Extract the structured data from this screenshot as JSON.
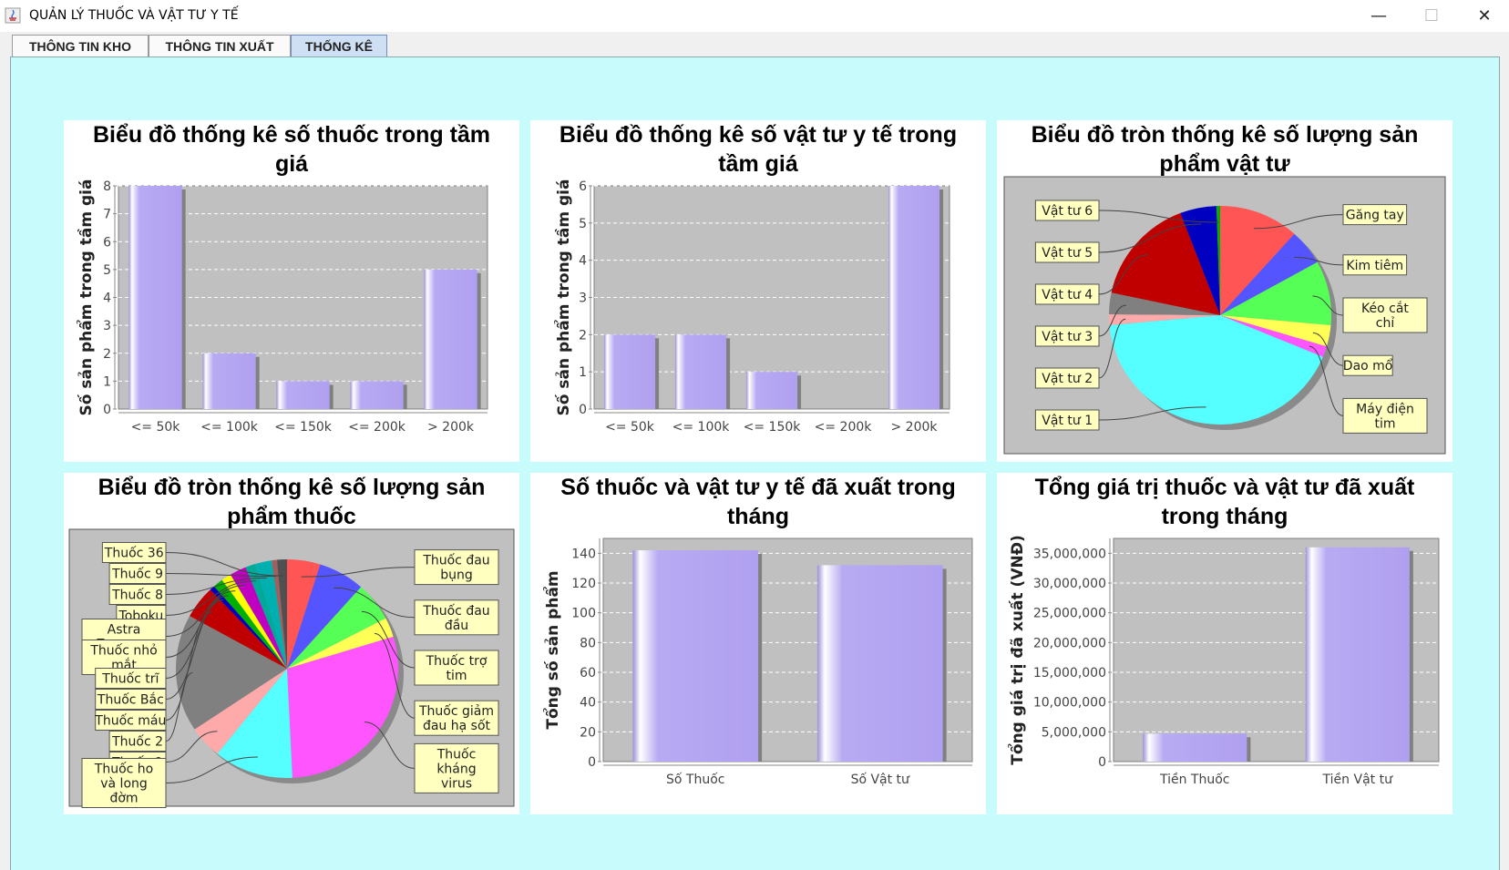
{
  "window": {
    "title": "QUẢN LÝ THUỐC VÀ VẬT TƯ Y TẾ",
    "minimize_glyph": "—",
    "maximize_glyph": "☐",
    "close_glyph": "✕"
  },
  "tabs": [
    {
      "label": "THÔNG TIN KHO",
      "active": false
    },
    {
      "label": "THÔNG TIN XUẤT",
      "active": false
    },
    {
      "label": "THỐNG KÊ",
      "active": true
    }
  ],
  "panels": {
    "p1": {
      "title_1": "Biểu đồ thống kê số thuốc trong tầm",
      "title_2": "giá"
    },
    "p2": {
      "title_1": "Biểu đồ thống kê số vật tư y tế trong",
      "title_2": "tầm giá"
    },
    "p3": {
      "title_1": "Biểu đồ tròn thống kê số lượng sản",
      "title_2": "phẩm vật tư"
    },
    "p4": {
      "title_1": "Biểu đồ tròn thống kê số lượng sản",
      "title_2": "phẩm thuốc"
    },
    "p5": {
      "title_1": "Số thuốc và vật tư y tế đã xuất trong",
      "title_2": "tháng"
    },
    "p6": {
      "title_1": "Tổng giá trị thuốc và vật tư đã xuất",
      "title_2": "trong tháng"
    }
  },
  "chart_data": [
    {
      "type": "bar",
      "ylabel": "Số sản phẩm trong tầm giá",
      "categories": [
        "<= 50k",
        "<= 100k",
        "<= 150k",
        "<= 200k",
        "> 200k"
      ],
      "values": [
        8,
        2,
        1,
        1,
        5
      ],
      "ylim": [
        0,
        8
      ],
      "yticks": [
        "0",
        "1",
        "2",
        "3",
        "4",
        "5",
        "6",
        "7",
        "8"
      ],
      "color": "#b0a0f0"
    },
    {
      "type": "bar",
      "ylabel": "Số sản phẩm trong tầm giá",
      "categories": [
        "<= 50k",
        "<= 100k",
        "<= 150k",
        "<= 200k",
        "> 200k"
      ],
      "values": [
        2,
        2,
        1,
        0,
        6
      ],
      "ylim": [
        0,
        6
      ],
      "yticks": [
        "0",
        "1",
        "2",
        "3",
        "4",
        "5",
        "6"
      ],
      "color": "#ff88ee"
    },
    {
      "type": "pie",
      "slices": [
        {
          "label": "Găng tay",
          "value": 11,
          "color": "#ff5555"
        },
        {
          "label": "Kim tiêm",
          "value": 5,
          "color": "#5555ff"
        },
        {
          "label": "Kéo cắt chỉ",
          "value": 9,
          "color": "#55ff55"
        },
        {
          "label": "Dao mổ",
          "value": 3,
          "color": "#ffff55"
        },
        {
          "label": "Máy điện tim",
          "value": 1.5,
          "color": "#ff55ff"
        },
        {
          "label": "Vật tư 1",
          "value": 40,
          "color": "#55ffff"
        },
        {
          "label": "Vật tư 2",
          "value": 1.5,
          "color": "#ffaaaa"
        },
        {
          "label": "Vật tư 3",
          "value": 3,
          "color": "#808080"
        },
        {
          "label": "Vật tư 4",
          "value": 15,
          "color": "#c00000"
        },
        {
          "label": "Vật tư 5",
          "value": 5,
          "color": "#0000c0"
        },
        {
          "label": "Vật tư 6",
          "value": 0.5,
          "color": "#00b000"
        }
      ]
    },
    {
      "type": "pie",
      "slices": [
        {
          "label": "Thuốc đau bụng",
          "value": 5,
          "color": "#ff5555"
        },
        {
          "label": "Thuốc đau đầu",
          "value": 7,
          "color": "#5555ff"
        },
        {
          "label": "Thuốc trợ tim",
          "value": 6,
          "color": "#55ff55"
        },
        {
          "label": "Thuốc giảm đau hạ sốt",
          "value": 3,
          "color": "#ffff55"
        },
        {
          "label": "Thuốc kháng virus",
          "value": 30,
          "color": "#ff55ff"
        },
        {
          "label": "Thuốc ho và long đờm",
          "value": 12,
          "color": "#55ffff"
        },
        {
          "label": "Thuốc 1",
          "value": 5,
          "color": "#ffaaaa"
        },
        {
          "label": "Thuốc 2",
          "value": 18,
          "color": "#808080"
        },
        {
          "label": "Thuốc máu",
          "value": 5,
          "color": "#c00000"
        },
        {
          "label": "Thuốc Bắc",
          "value": 0.8,
          "color": "#0000c0"
        },
        {
          "label": "Thuốc trĩ",
          "value": 1.5,
          "color": "#00b000"
        },
        {
          "label": "Thuốc nhỏ mắt",
          "value": 1.5,
          "color": "#ffff00"
        },
        {
          "label": "Astra Zennace",
          "value": 2.5,
          "color": "#c000c0"
        },
        {
          "label": "Toboku",
          "value": 1.5,
          "color": "#00aa99"
        },
        {
          "label": "Thuốc 8",
          "value": 2.5,
          "color": "#00b0b0"
        },
        {
          "label": "Thuốc 9",
          "value": 0.8,
          "color": "#a06060"
        },
        {
          "label": "Thuốc 36",
          "value": 1.5,
          "color": "#505050"
        }
      ]
    },
    {
      "type": "bar",
      "ylabel": "Tổng số sản phẩm",
      "categories": [
        "Số Thuốc",
        "Số Vật tư"
      ],
      "values": [
        142,
        132
      ],
      "ylim": [
        0,
        150
      ],
      "yticks": [
        "0",
        "20",
        "40",
        "60",
        "80",
        "100",
        "120",
        "140"
      ],
      "color": "#ff2db0"
    },
    {
      "type": "bar",
      "ylabel": "Tổng giá trị đã xuất (VNĐ)",
      "categories": [
        "Tiền Thuốc",
        "Tiền Vật tư"
      ],
      "values": [
        4700000,
        36000000
      ],
      "ylim": [
        0,
        37500000
      ],
      "yticks": [
        "0",
        "5,000,000",
        "10,000,000",
        "15,000,000",
        "20,000,000",
        "25,000,000",
        "30,000,000",
        "35,000,000"
      ],
      "color": "#2e8b2e"
    }
  ]
}
